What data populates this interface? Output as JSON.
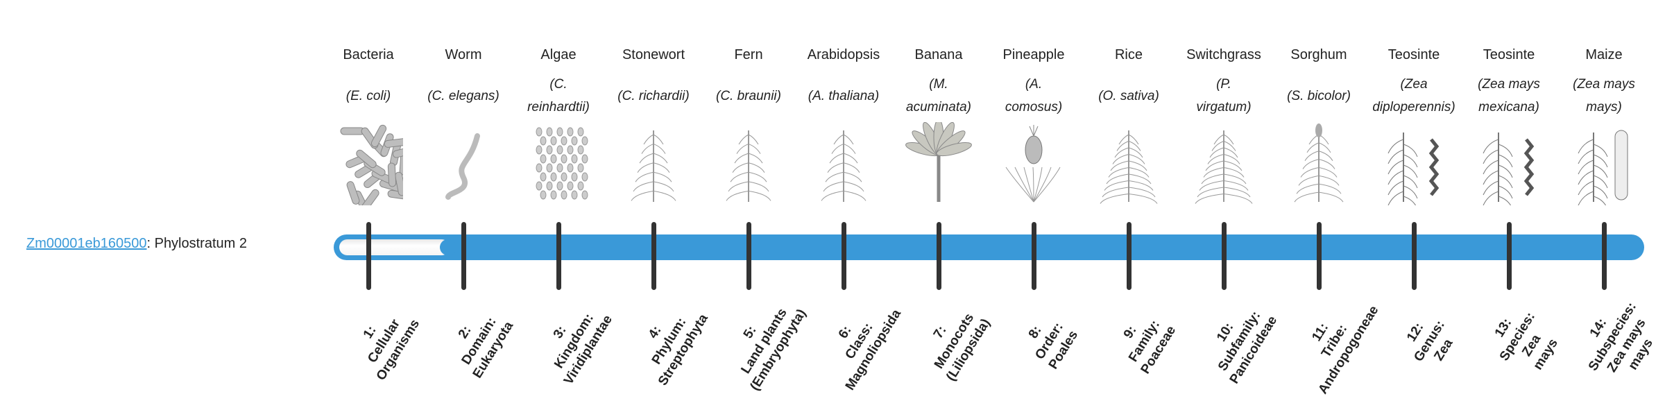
{
  "gene": {
    "id": "Zm00001eb160500",
    "suffix": ": Phylostratum 2"
  },
  "progress": {
    "phylostratum": 2,
    "total": 14
  },
  "colors": {
    "accent": "#3a99d8",
    "tick": "#333333",
    "link": "#3a99d8"
  },
  "organisms": [
    {
      "common": "Bacteria",
      "species": [
        "(E. coli)"
      ],
      "icon": "bacteria-icon"
    },
    {
      "common": "Worm",
      "species": [
        "(C. elegans)"
      ],
      "icon": "worm-icon"
    },
    {
      "common": "Algae",
      "species": [
        "(C.",
        "reinhardtii)"
      ],
      "icon": "algae-icon"
    },
    {
      "common": "Stonewort",
      "species": [
        "(C. richardii)"
      ],
      "icon": "stonewort-icon"
    },
    {
      "common": "Fern",
      "species": [
        "(C. braunii)"
      ],
      "icon": "fern-icon"
    },
    {
      "common": "Arabidopsis",
      "species": [
        "(A. thaliana)"
      ],
      "icon": "arabidopsis-icon"
    },
    {
      "common": "Banana",
      "species": [
        "(M.",
        "acuminata)"
      ],
      "icon": "banana-icon"
    },
    {
      "common": "Pineapple",
      "species": [
        "(A.",
        "comosus)"
      ],
      "icon": "pineapple-icon"
    },
    {
      "common": "Rice",
      "species": [
        "(O. sativa)"
      ],
      "icon": "rice-icon"
    },
    {
      "common": "Switchgrass",
      "species": [
        "(P.",
        "virgatum)"
      ],
      "icon": "switchgrass-icon"
    },
    {
      "common": "Sorghum",
      "species": [
        "(S. bicolor)"
      ],
      "icon": "sorghum-icon"
    },
    {
      "common": "Teosinte",
      "species": [
        "(Zea",
        "diploperennis)"
      ],
      "icon": "teosinte-icon"
    },
    {
      "common": "Teosinte",
      "species": [
        "(Zea mays",
        "mexicana)"
      ],
      "icon": "teosinte-icon"
    },
    {
      "common": "Maize",
      "species": [
        "(Zea mays",
        "mays)"
      ],
      "icon": "maize-icon"
    }
  ],
  "strata": [
    [
      "1:",
      "Cellular",
      "Organisms"
    ],
    [
      "2:",
      "Domain:",
      "Eukaryota"
    ],
    [
      "3:",
      "Kingdom:",
      "Viridiplantae"
    ],
    [
      "4:",
      "Phylum:",
      "Streptophyta"
    ],
    [
      "5:",
      "Land plants",
      "(Embryophyta)"
    ],
    [
      "6:",
      "Class:",
      "Magnoliopsida"
    ],
    [
      "7:",
      "Monocots",
      "(Liliopsida)"
    ],
    [
      "8:",
      "Order:",
      "Poales"
    ],
    [
      "9:",
      "Family:",
      "Poaceae"
    ],
    [
      "10:",
      "Subfamily:",
      "Panicoideae"
    ],
    [
      "11:",
      "Tribe:",
      "Andropogoneae"
    ],
    [
      "12:",
      "Genus:",
      "Zea"
    ],
    [
      "13:",
      "Species:",
      "Zea",
      "mays"
    ],
    [
      "14:",
      "Subspecies:",
      "Zea mays",
      "mays"
    ]
  ]
}
